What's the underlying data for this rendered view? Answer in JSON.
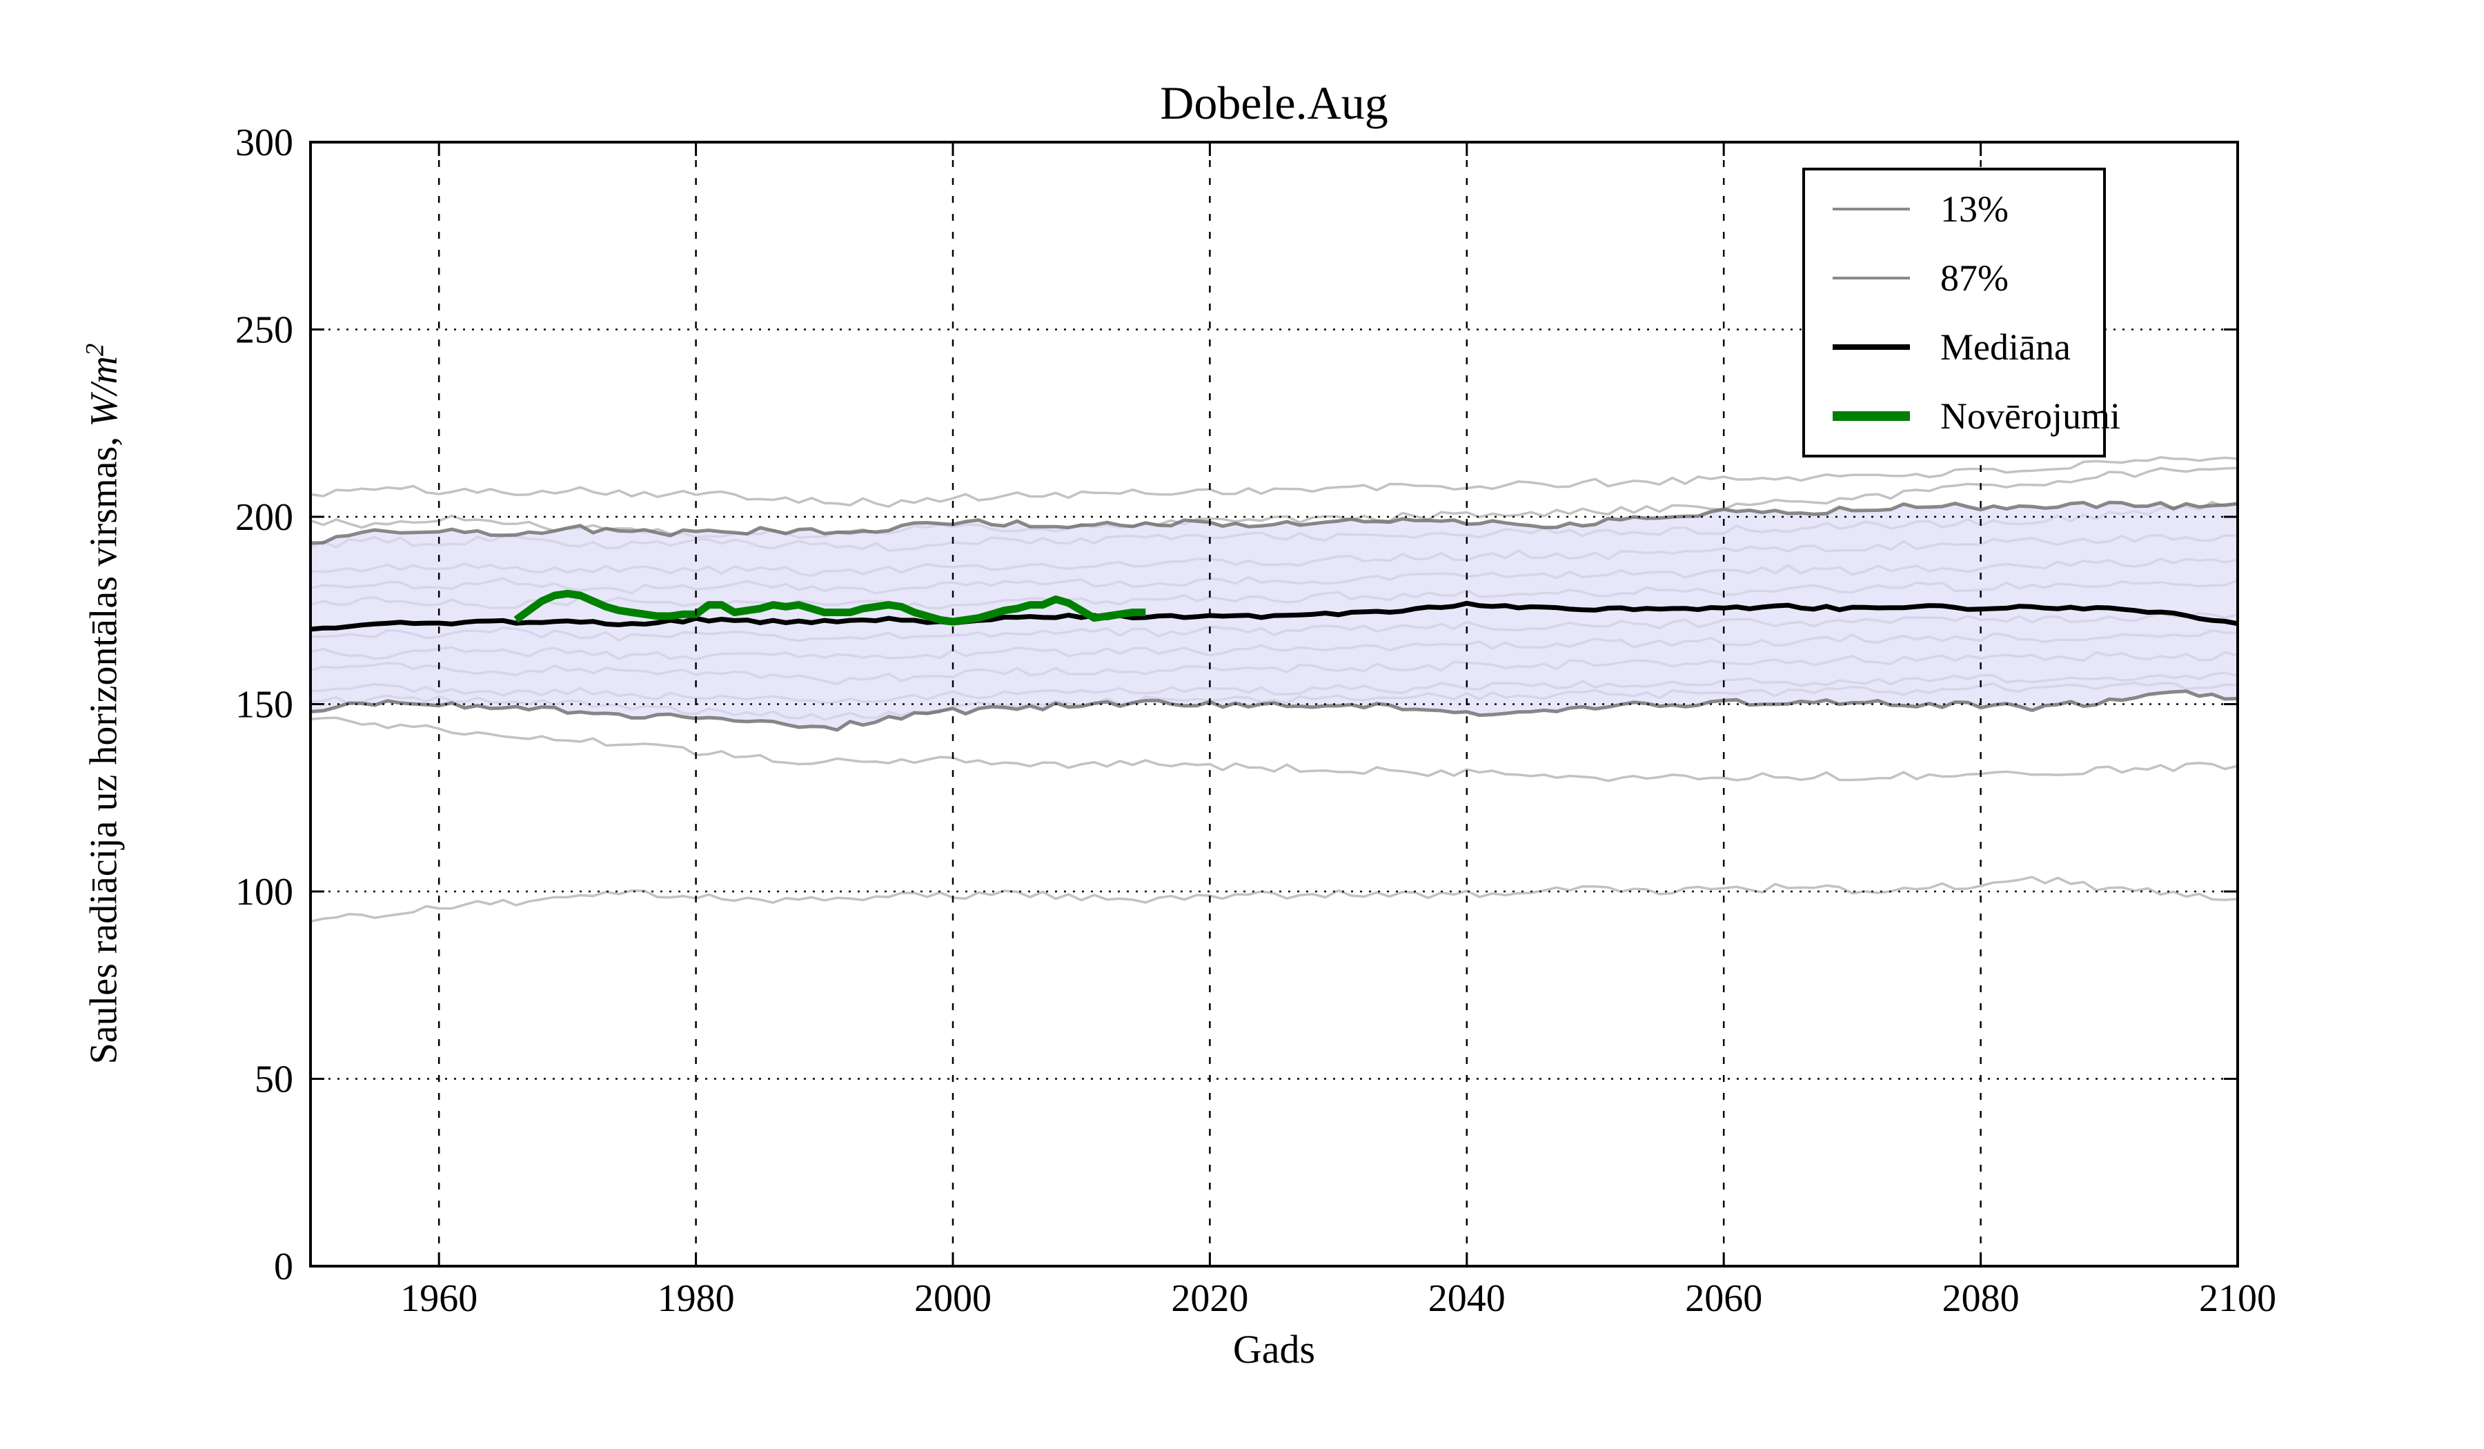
{
  "title": "Dobele.Aug",
  "xlabel": "Gads",
  "ylabel": {
    "prefix": "Saules radiācija uz horizontālas virsmas, ",
    "math": "W/m",
    "sup": "2"
  },
  "legend": {
    "items": [
      {
        "label": "13%",
        "color": "#8a8a8a",
        "thickness": 4
      },
      {
        "label": "87%",
        "color": "#8a8a8a",
        "thickness": 4
      },
      {
        "label": "Mediāna",
        "color": "#000000",
        "thickness": 8
      },
      {
        "label": "Novērojumi",
        "color": "#008000",
        "thickness": 14
      }
    ]
  },
  "colors": {
    "background": "#ffffff",
    "band_fill": "#dedef6",
    "band_fill_opacity": 0.72,
    "percentile_line": "#6b6b6b",
    "ensemble_line": "#c2c2c2",
    "median_line": "#000000",
    "observations_line": "#008000",
    "grid": "#000000",
    "axis": "#000000"
  },
  "chart_data": {
    "type": "line",
    "title": "Dobele.Aug",
    "xlabel": "Gads",
    "ylabel": "Saules radiācija uz horizontālas virsmas, W/m^2",
    "xlim": [
      1950,
      2100
    ],
    "ylim": [
      0,
      300
    ],
    "xticks": [
      1960,
      1980,
      2000,
      2020,
      2040,
      2060,
      2080,
      2100
    ],
    "yticks": [
      0,
      50,
      100,
      150,
      200,
      250,
      300
    ],
    "xgrid": [
      1960,
      1980,
      2000,
      2020,
      2040,
      2060,
      2080
    ],
    "ygrid": [
      50,
      100,
      150,
      200,
      250
    ],
    "grid": true,
    "legend_position": "upper right",
    "x": [
      1950,
      1955,
      1960,
      1965,
      1970,
      1975,
      1980,
      1985,
      1990,
      1995,
      2000,
      2005,
      2010,
      2015,
      2020,
      2025,
      2030,
      2035,
      2040,
      2045,
      2050,
      2055,
      2060,
      2065,
      2070,
      2075,
      2080,
      2085,
      2090,
      2095,
      2100
    ],
    "band": {
      "lower": "13%",
      "upper": "87%"
    },
    "series": [
      {
        "name": "87%",
        "role": "percentile-upper",
        "values": [
          193,
          196,
          196.5,
          195.5,
          197,
          196,
          195.5,
          196.5,
          196,
          197,
          198.5,
          198,
          197.5,
          198,
          198.5,
          198,
          198.5,
          199,
          198.5,
          197.5,
          198.5,
          200,
          201.5,
          201,
          202,
          203,
          202.5,
          203,
          203.5,
          203,
          203.5
        ]
      },
      {
        "name": "13%",
        "role": "percentile-lower",
        "values": [
          148,
          150.5,
          150,
          149.5,
          148.5,
          147,
          146.5,
          145,
          143.5,
          146,
          148,
          149,
          150,
          150.5,
          150,
          149.5,
          150,
          149,
          148,
          147.5,
          149,
          150,
          150.5,
          150,
          150.5,
          150,
          149.5,
          149,
          151,
          153,
          151.5
        ]
      },
      {
        "name": "Mediāna",
        "role": "median",
        "values": [
          170,
          171.5,
          171.5,
          172,
          172,
          171.5,
          172.5,
          172,
          172,
          172.5,
          172,
          173,
          173.5,
          173,
          173.5,
          173.5,
          174,
          175,
          176.5,
          176,
          175.5,
          175,
          175.5,
          176,
          175.5,
          176,
          175.5,
          176,
          175.5,
          174,
          171.5
        ]
      },
      {
        "name": "ensemble-01",
        "role": "ensemble",
        "values": [
          206,
          207.5,
          207,
          206.5,
          207.5,
          206.5,
          206,
          205.5,
          204.5,
          203.5,
          205,
          205.5,
          206,
          206.5,
          207,
          207,
          207.5,
          208,
          208,
          208.5,
          209,
          209.5,
          210,
          210.5,
          211,
          211.5,
          212,
          213,
          214,
          215,
          215.5
        ]
      },
      {
        "name": "ensemble-02",
        "role": "ensemble",
        "values": [
          199,
          198,
          199.5,
          198.5,
          197,
          196.5,
          195.5,
          196,
          195,
          196.5,
          197.5,
          196.5,
          197,
          198,
          198.5,
          199,
          199.5,
          200,
          200.5,
          201,
          201.5,
          202,
          203,
          204,
          205,
          206.5,
          208,
          209.5,
          211,
          212.5,
          213
        ]
      },
      {
        "name": "ensemble-03",
        "role": "ensemble",
        "values": [
          192,
          193.5,
          193,
          194,
          193,
          192.5,
          193.5,
          192.5,
          193,
          192,
          193,
          194,
          193.5,
          194.5,
          194,
          195,
          194.5,
          195,
          195.5,
          196,
          195.5,
          196,
          196.5,
          197,
          197.5,
          198,
          198.5,
          199.5,
          200.5,
          202,
          203.5
        ]
      },
      {
        "name": "ensemble-04",
        "role": "ensemble",
        "values": [
          185.5,
          186,
          187,
          186,
          185.5,
          186.5,
          185.5,
          186,
          185,
          186,
          186.5,
          187,
          186.5,
          187.5,
          188,
          187.5,
          188.5,
          189,
          189.5,
          190,
          189.5,
          190.5,
          191,
          191.5,
          192,
          192.5,
          193,
          193.5,
          194,
          194.5,
          195
        ]
      },
      {
        "name": "ensemble-05",
        "role": "ensemble",
        "values": [
          181,
          182,
          181.5,
          182.5,
          181.5,
          180.5,
          181.5,
          182,
          181,
          180.5,
          181.5,
          182,
          182.5,
          182,
          183,
          183.5,
          183,
          184,
          184.5,
          184,
          185,
          184.5,
          185.5,
          186,
          185.5,
          186.5,
          186,
          187,
          187.5,
          188,
          188.5
        ]
      },
      {
        "name": "ensemble-06",
        "role": "ensemble",
        "values": [
          176.5,
          177.5,
          177,
          176.5,
          177.5,
          178,
          177,
          176.5,
          177.5,
          177,
          176.5,
          177.5,
          178,
          177.5,
          178.5,
          178,
          179,
          178.5,
          179.5,
          180,
          179.5,
          180.5,
          180,
          181,
          180.5,
          181.5,
          181,
          182,
          182.5,
          182,
          183
        ]
      },
      {
        "name": "ensemble-07",
        "role": "ensemble",
        "values": [
          168,
          169,
          168.5,
          169.5,
          168.5,
          168,
          169,
          168.5,
          167.5,
          168.5,
          168,
          169,
          169.5,
          169,
          170,
          169.5,
          170.5,
          170,
          171,
          170.5,
          171.5,
          171,
          172,
          171.5,
          172.5,
          172,
          173,
          172.5,
          173.5,
          173,
          174
        ]
      },
      {
        "name": "ensemble-08",
        "role": "ensemble",
        "values": [
          164,
          163,
          164.5,
          163.5,
          164,
          163,
          162.5,
          163.5,
          162.5,
          163,
          163.5,
          164,
          163.5,
          164.5,
          164,
          165,
          165.5,
          165,
          166,
          165.5,
          166.5,
          166,
          167,
          166.5,
          167.5,
          167,
          168,
          167.5,
          168.5,
          168,
          169
        ]
      },
      {
        "name": "ensemble-09",
        "role": "ensemble",
        "values": [
          159,
          160,
          159.5,
          158.5,
          159.5,
          158.5,
          158,
          157.5,
          156,
          157,
          158,
          158.5,
          159,
          158.5,
          159.5,
          159,
          160,
          159.5,
          160.5,
          160,
          161,
          160.5,
          161.5,
          161,
          162,
          161.5,
          162.5,
          162,
          163,
          162.5,
          163
        ]
      },
      {
        "name": "ensemble-10",
        "role": "ensemble",
        "values": [
          153.5,
          154.5,
          154,
          153,
          153.5,
          152.5,
          152,
          151.5,
          150.5,
          151.5,
          152.5,
          153,
          153.5,
          153,
          154,
          153.5,
          154.5,
          154,
          155,
          154.5,
          155.5,
          155,
          156,
          155.5,
          156.5,
          156,
          157,
          156.5,
          157.5,
          157,
          157.5
        ]
      },
      {
        "name": "ensemble-11",
        "role": "ensemble",
        "values": [
          150.5,
          151.5,
          151,
          150.5,
          150,
          149,
          148.5,
          147.5,
          146,
          147.5,
          149,
          150,
          150.5,
          151,
          151.5,
          151,
          152,
          151.5,
          152.5,
          152,
          153,
          152.5,
          153.5,
          153,
          154,
          153.5,
          154.5,
          154,
          155,
          154.5,
          155
        ]
      },
      {
        "name": "ensemble-12",
        "role": "ensemble",
        "values": [
          146,
          145,
          143.5,
          142,
          140.5,
          139,
          137.5,
          136,
          134.5,
          134,
          135,
          134.5,
          133.5,
          134,
          133.5,
          133,
          132.5,
          132,
          131.5,
          131,
          130.5,
          131,
          130.5,
          131,
          130.5,
          131,
          131.5,
          132,
          132.5,
          133,
          133.5
        ]
      },
      {
        "name": "ensemble-13",
        "role": "ensemble",
        "values": [
          92,
          94,
          95.5,
          97,
          98.5,
          100,
          99,
          98,
          97.5,
          98.5,
          99,
          99.5,
          98.5,
          98,
          98.5,
          99,
          99.5,
          99,
          99.5,
          100,
          100.5,
          100,
          100.5,
          101,
          100.5,
          101,
          102,
          103,
          101,
          99,
          98
        ]
      }
    ],
    "observations": {
      "name": "Novērojumi",
      "x": [
        1966,
        1967,
        1968,
        1969,
        1970,
        1971,
        1972,
        1973,
        1974,
        1975,
        1976,
        1977,
        1978,
        1979,
        1980,
        1981,
        1982,
        1983,
        1984,
        1985,
        1986,
        1987,
        1988,
        1989,
        1990,
        1991,
        1992,
        1993,
        1994,
        1995,
        1996,
        1997,
        1998,
        1999,
        2000,
        2001,
        2002,
        2003,
        2004,
        2005,
        2006,
        2007,
        2008,
        2009,
        2010,
        2011,
        2012,
        2013,
        2014,
        2015
      ],
      "values": [
        172.5,
        175,
        177.5,
        179,
        179.5,
        179,
        177.5,
        176,
        175,
        174.5,
        174,
        173.5,
        173.5,
        174,
        174,
        176.5,
        176.5,
        174.5,
        175,
        175.5,
        176.5,
        176,
        176.5,
        175.5,
        174.5,
        174.5,
        174.5,
        175.5,
        176,
        176.5,
        176,
        174.5,
        173.5,
        172.5,
        172,
        172.5,
        173,
        174,
        175,
        175.5,
        176.5,
        176.5,
        178,
        177,
        175,
        173,
        173.5,
        174,
        174.5,
        174.5
      ]
    }
  }
}
